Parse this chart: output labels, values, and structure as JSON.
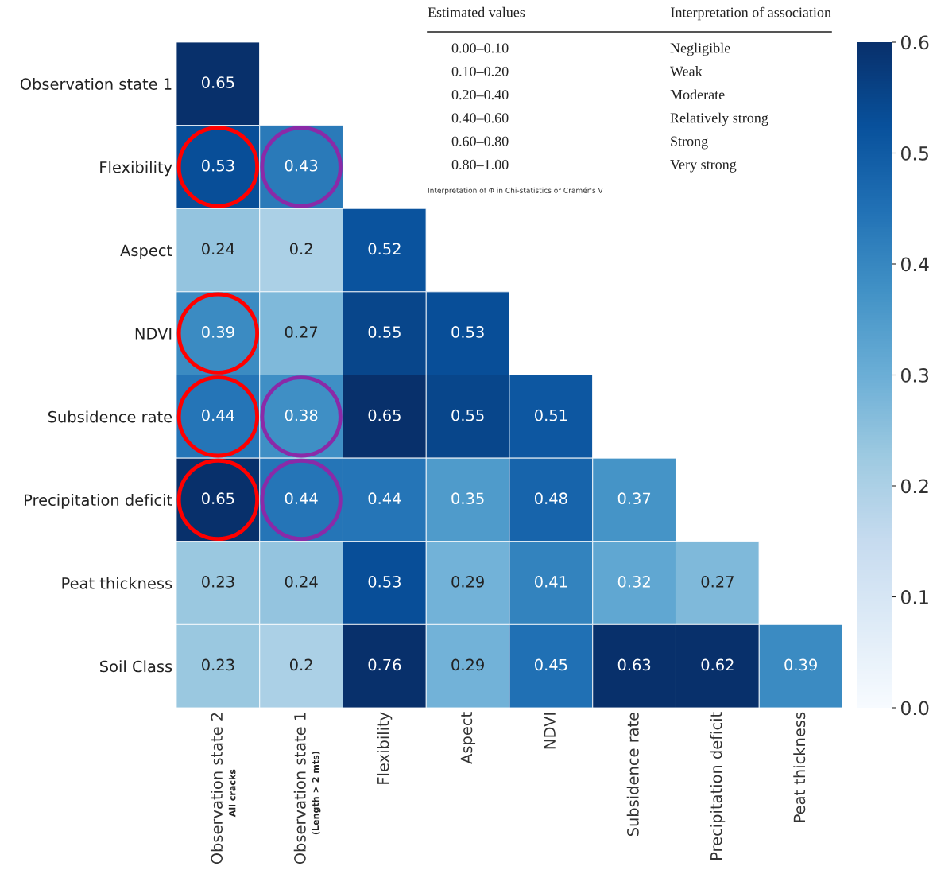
{
  "chart_data": {
    "type": "heatmap",
    "categories": [
      "Observation state 2",
      "Observation state 1",
      "Flexibility",
      "Aspect",
      "NDVI",
      "Subsidence rate",
      "Precipitation deficit",
      "Peat thickness"
    ],
    "y_categories": [
      "Observation state 1",
      "Flexibility",
      "Aspect",
      "NDVI",
      "Subsidence rate",
      "Precipitation deficit",
      "Peat thickness",
      "Soil Class"
    ],
    "cells": [
      [
        0.65,
        null,
        null,
        null,
        null,
        null,
        null,
        null
      ],
      [
        0.53,
        0.43,
        null,
        null,
        null,
        null,
        null,
        null
      ],
      [
        0.24,
        0.2,
        0.52,
        null,
        null,
        null,
        null,
        null
      ],
      [
        0.39,
        0.27,
        0.55,
        0.53,
        null,
        null,
        null,
        null
      ],
      [
        0.44,
        0.38,
        0.65,
        0.55,
        0.51,
        null,
        null,
        null
      ],
      [
        0.65,
        0.44,
        0.44,
        0.35,
        0.48,
        0.37,
        null,
        null
      ],
      [
        0.23,
        0.24,
        0.53,
        0.29,
        0.41,
        0.32,
        0.27,
        null
      ],
      [
        0.23,
        0.2,
        0.76,
        0.29,
        0.45,
        0.63,
        0.62,
        0.39
      ]
    ],
    "clim": [
      0.0,
      0.6
    ],
    "cticks": [
      {
        "value": 0.0,
        "label": "0.0"
      },
      0.1,
      0.2,
      0.3,
      0.4,
      0.5,
      0.6
    ],
    "data_labels": true,
    "annotations": [
      "All cracks",
      "(Length > 2 mts)",
      "Estimated values",
      "Interpretation of association",
      "0.00–0.10",
      "Negligible",
      "0.10–0.20",
      "Weak",
      "0.20–0.40",
      "Moderate",
      "0.40–0.60",
      "Relatively strong",
      "0.60–0.80",
      "Strong",
      "0.80–1.00",
      "Very strong",
      "Interpretation of Φ in Chi-statistics or Cramér's V"
    ]
  }
}
